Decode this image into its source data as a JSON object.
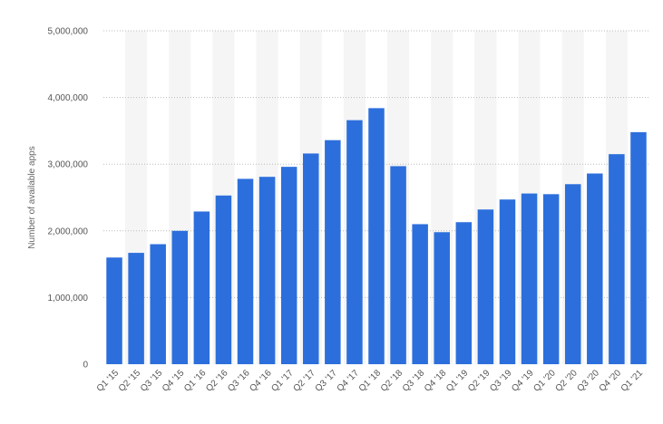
{
  "chart_data": {
    "type": "bar",
    "title": "",
    "xlabel": "",
    "ylabel": "Number of available apps",
    "ylim": [
      0,
      5000000
    ],
    "yticks": [
      0,
      1000000,
      2000000,
      3000000,
      4000000,
      5000000
    ],
    "ytick_labels": [
      "0",
      "1,000,000",
      "2,000,000",
      "3,000,000",
      "4,000,000",
      "5,000,000"
    ],
    "grid": true,
    "bar_color": "#2c6fdc",
    "band_color": "#f5f5f5",
    "categories": [
      "Q1 '15",
      "Q2 '15",
      "Q3 '15",
      "Q4 '15",
      "Q1 '16",
      "Q2 '16",
      "Q3 '16",
      "Q4 '16",
      "Q1 '17",
      "Q2 '17",
      "Q3 '17",
      "Q4 '17",
      "Q1 '18",
      "Q2 '18",
      "Q3 '18",
      "Q4 '18",
      "Q1 '19",
      "Q2 '19",
      "Q3 '19",
      "Q4 '19",
      "Q1 '20",
      "Q2 '20",
      "Q3 '20",
      "Q4 '20",
      "Q1 '21"
    ],
    "values": [
      1600000,
      1670000,
      1800000,
      2000000,
      2290000,
      2530000,
      2780000,
      2810000,
      2960000,
      3160000,
      3360000,
      3660000,
      3840000,
      2970000,
      2100000,
      1980000,
      2130000,
      2320000,
      2470000,
      2560000,
      2550000,
      2700000,
      2860000,
      3150000,
      3480000
    ]
  }
}
